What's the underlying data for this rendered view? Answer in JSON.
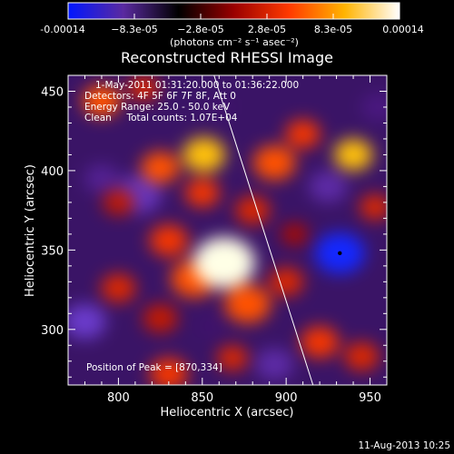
{
  "chart_data": {
    "type": "heatmap",
    "title": "Reconstructed RHESSI Image",
    "xlabel": "Heliocentric X (arcsec)",
    "ylabel": "Heliocentric Y (arcsec)",
    "xlim": [
      770,
      960
    ],
    "ylim": [
      265,
      460
    ],
    "x_ticks": [
      800,
      850,
      900,
      950
    ],
    "y_ticks": [
      300,
      350,
      400,
      450
    ],
    "colorbar": {
      "min": -0.00014,
      "max": 0.00014,
      "ticks": [
        "-0.00014",
        "−8.3e-05",
        "−2.8e-05",
        "2.8e-05",
        "8.3e-05",
        "0.00014"
      ],
      "unit_label": "(photons cm⁻² s⁻¹ asec⁻²)",
      "colors": [
        "#0016ff",
        "#5a2aa0",
        "#000000",
        "#9a0000",
        "#ff3a00",
        "#ffb300",
        "#ffffff"
      ]
    },
    "annotations": {
      "time_range": "1-May-2011 01:31:20.000 to 01:36:22.000",
      "detectors": "Detectors: 4F 5F 6F 7F 8F, Att 0",
      "energy": "Energy Range: 25.0 - 50.0 keV",
      "clean": "Clean     Total counts: 1.07E+04",
      "peak": "Position of Peak = [870,334]"
    },
    "peak": {
      "x": 870,
      "y": 334
    },
    "marker": {
      "x": 932,
      "y": 348
    },
    "limb_line": [
      [
        857,
        460
      ],
      [
        916,
        265
      ]
    ],
    "blobs": [
      {
        "x": 863,
        "y": 342,
        "r": 16,
        "v": 0.00014
      },
      {
        "x": 845,
        "y": 332,
        "r": 12,
        "v": 9e-05
      },
      {
        "x": 830,
        "y": 356,
        "r": 10,
        "v": 8e-05
      },
      {
        "x": 877,
        "y": 316,
        "r": 12,
        "v": 9e-05
      },
      {
        "x": 900,
        "y": 330,
        "r": 9,
        "v": 7e-05
      },
      {
        "x": 800,
        "y": 326,
        "r": 9,
        "v": 7e-05
      },
      {
        "x": 825,
        "y": 307,
        "r": 9,
        "v": 6e-05
      },
      {
        "x": 851,
        "y": 410,
        "r": 11,
        "v": 0.00012
      },
      {
        "x": 825,
        "y": 402,
        "r": 10,
        "v": 9e-05
      },
      {
        "x": 850,
        "y": 386,
        "r": 9,
        "v": 8e-05
      },
      {
        "x": 893,
        "y": 405,
        "r": 11,
        "v": 9e-05
      },
      {
        "x": 880,
        "y": 375,
        "r": 9,
        "v": 7e-05
      },
      {
        "x": 940,
        "y": 410,
        "r": 10,
        "v": 0.00012
      },
      {
        "x": 910,
        "y": 423,
        "r": 9,
        "v": 8e-05
      },
      {
        "x": 790,
        "y": 444,
        "r": 10,
        "v": 9e-05
      },
      {
        "x": 815,
        "y": 452,
        "r": 8,
        "v": 7e-05
      },
      {
        "x": 920,
        "y": 292,
        "r": 10,
        "v": 8e-05
      },
      {
        "x": 945,
        "y": 283,
        "r": 9,
        "v": 7e-05
      },
      {
        "x": 830,
        "y": 272,
        "r": 10,
        "v": 8e-05
      },
      {
        "x": 868,
        "y": 282,
        "r": 8,
        "v": 7e-05
      },
      {
        "x": 800,
        "y": 380,
        "r": 8,
        "v": 6e-05
      },
      {
        "x": 953,
        "y": 377,
        "r": 8,
        "v": 7e-05
      },
      {
        "x": 905,
        "y": 360,
        "r": 7,
        "v": 5e-05
      },
      {
        "x": 932,
        "y": 348,
        "r": 13,
        "v": -0.00014
      },
      {
        "x": 812,
        "y": 385,
        "r": 12,
        "v": -9e-05
      },
      {
        "x": 780,
        "y": 305,
        "r": 11,
        "v": -0.0001
      },
      {
        "x": 893,
        "y": 278,
        "r": 10,
        "v": -8e-05
      },
      {
        "x": 790,
        "y": 395,
        "r": 9,
        "v": -7e-05
      },
      {
        "x": 925,
        "y": 390,
        "r": 10,
        "v": -8e-05
      },
      {
        "x": 955,
        "y": 440,
        "r": 9,
        "v": -6e-05
      },
      {
        "x": 860,
        "y": 440,
        "r": 8,
        "v": -5e-05
      },
      {
        "x": 855,
        "y": 302,
        "r": 8,
        "v": -5e-05
      }
    ]
  },
  "footer": {
    "date": "11-Aug-2013 10:25"
  }
}
